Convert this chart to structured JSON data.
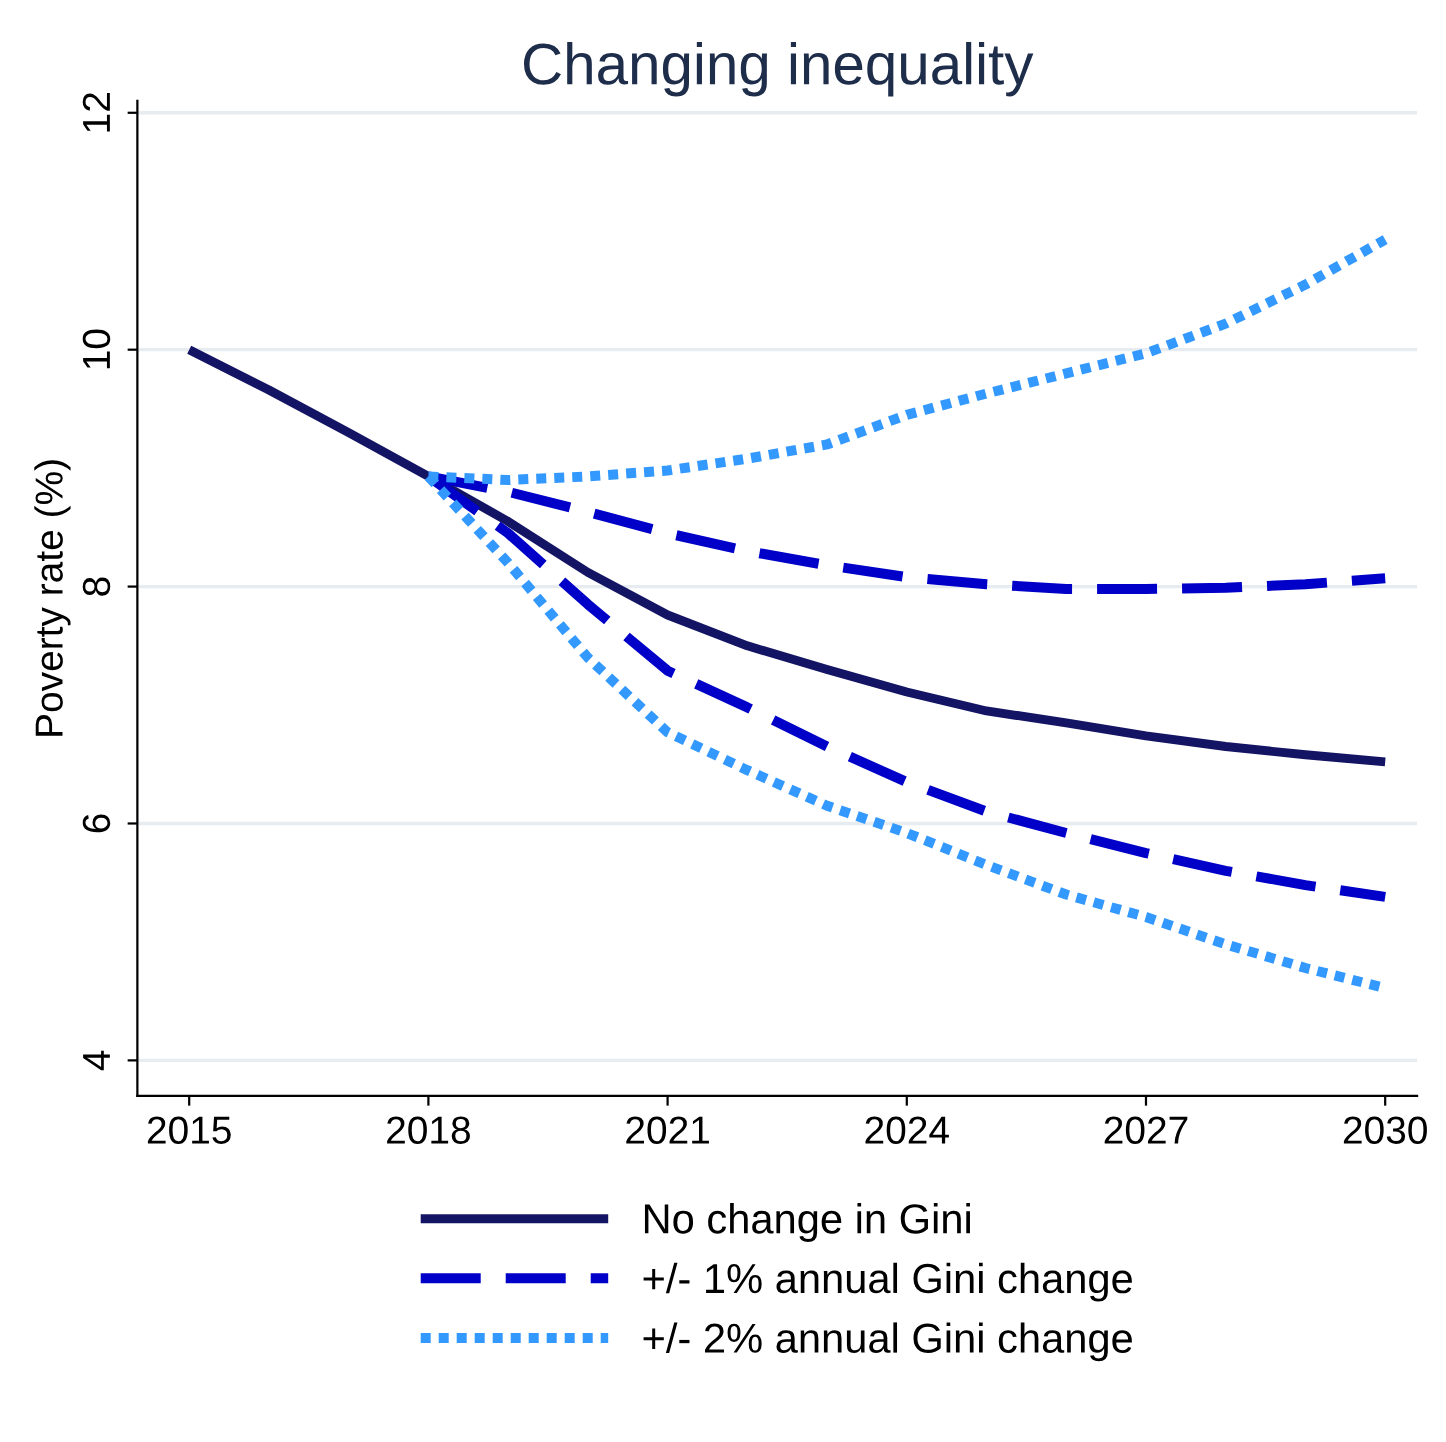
{
  "chart_data": {
    "type": "line",
    "title": "Changing inequality",
    "ylabel": "Poverty rate (%)",
    "x": [
      2015,
      2016,
      2017,
      2018,
      2019,
      2020,
      2021,
      2022,
      2023,
      2024,
      2025,
      2026,
      2027,
      2028,
      2029,
      2030
    ],
    "xlim": [
      2014.35,
      2030.4
    ],
    "xticks": [
      2015,
      2018,
      2021,
      2024,
      2027,
      2030
    ],
    "ylim": [
      3.7,
      12.1
    ],
    "yticks": [
      4,
      6,
      8,
      10,
      12
    ],
    "grid": "y",
    "legend": "bottom",
    "series": [
      {
        "name": "No change in Gini",
        "color": "#141464",
        "line_style": "solid",
        "values": [
          10,
          9.66,
          9.3,
          8.93,
          8.55,
          8.12,
          7.76,
          7.5,
          7.3,
          7.11,
          6.95,
          6.85,
          6.74,
          6.65,
          6.58,
          6.52
        ]
      },
      {
        "name": "+/- 1% annual Gini change",
        "color": "#0000c8",
        "line_style": "dashed",
        "x": [
          2018,
          2019,
          2020,
          2021,
          2022,
          2023,
          2024,
          2025,
          2026,
          2027,
          2028,
          2029,
          2030
        ],
        "values": [
          8.93,
          8.8,
          8.63,
          8.45,
          8.3,
          8.18,
          8.08,
          8.02,
          7.98,
          7.98,
          7.99,
          8.02,
          8.07
        ]
      },
      {
        "color": "#0000c8",
        "line_style": "dashed",
        "x": [
          2018,
          2019,
          2020,
          2021,
          2022,
          2023,
          2024,
          2025,
          2026,
          2027,
          2028,
          2029,
          2030
        ],
        "values": [
          8.93,
          8.45,
          7.85,
          7.29,
          6.98,
          6.65,
          6.35,
          6.1,
          5.92,
          5.75,
          5.6,
          5.48,
          5.38
        ]
      },
      {
        "name": "+/- 2% annual Gini change",
        "color": "#3399ff",
        "line_style": "dotted",
        "x": [
          2018,
          2019,
          2020,
          2021,
          2022,
          2023,
          2024,
          2025,
          2026,
          2027,
          2028,
          2029,
          2030
        ],
        "values": [
          8.93,
          8.9,
          8.93,
          8.98,
          9.08,
          9.2,
          9.45,
          9.63,
          9.8,
          9.97,
          10.22,
          10.55,
          10.93
        ]
      },
      {
        "color": "#3399ff",
        "line_style": "dotted",
        "x": [
          2018,
          2019,
          2020,
          2021,
          2022,
          2023,
          2024,
          2025,
          2026,
          2027,
          2028,
          2029,
          2030
        ],
        "values": [
          8.93,
          8.2,
          7.4,
          6.77,
          6.45,
          6.15,
          5.92,
          5.65,
          5.4,
          5.21,
          4.98,
          4.78,
          4.61
        ]
      }
    ]
  }
}
